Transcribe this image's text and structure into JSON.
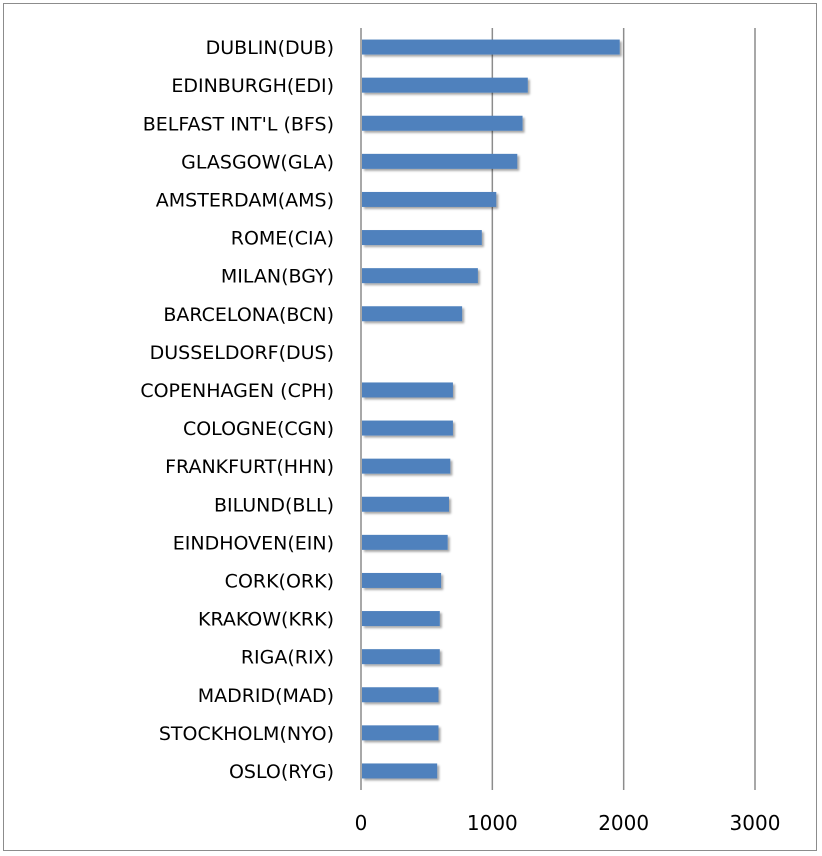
{
  "chart_data": {
    "type": "bar",
    "orientation": "horizontal",
    "categories": [
      "DUBLIN(DUB)",
      "EDINBURGH(EDI)",
      "BELFAST INT'L (BFS)",
      "GLASGOW(GLA)",
      "AMSTERDAM(AMS)",
      "ROME(CIA)",
      "MILAN(BGY)",
      "BARCELONA(BCN)",
      "DUSSELDORF(DUS)",
      "COPENHAGEN (CPH)",
      "COLOGNE(CGN)",
      "FRANKFURT(HHN)",
      "BILUND(BLL)",
      "EINDHOVEN(EIN)",
      "CORK(ORK)",
      "KRAKOW(KRK)",
      "RIGA(RIX)",
      "MADRID(MAD)",
      "STOCKHOLM(NYO)",
      "OSLO(RYG)"
    ],
    "values": [
      1970,
      1270,
      1230,
      1190,
      1030,
      920,
      890,
      770,
      0,
      700,
      700,
      680,
      670,
      660,
      610,
      600,
      600,
      590,
      590,
      580
    ],
    "xlim": [
      0,
      3000
    ],
    "xticks": [
      "0",
      "1000",
      "2000",
      "3000"
    ],
    "grid": "vertical",
    "legend": "none",
    "title": "",
    "xlabel": "",
    "ylabel": "",
    "colors": {
      "bar": "#4f81bd",
      "grid": "#8c8c8c",
      "axis": "#8c8c8c"
    }
  }
}
